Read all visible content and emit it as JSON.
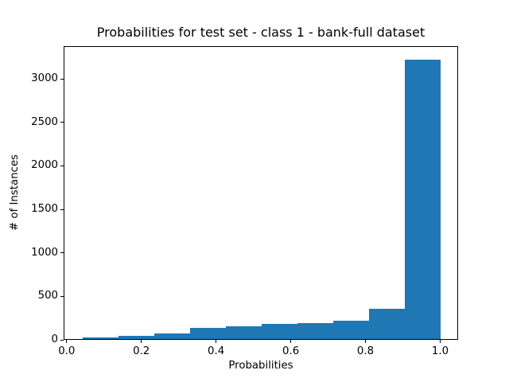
{
  "chart_data": {
    "type": "bar",
    "subtype": "histogram",
    "title": "Probabilities for test set - class 1 - bank-full dataset",
    "xlabel": "Probabilities",
    "ylabel": "# of Instances",
    "bar_color": "#1f77b4",
    "bin_edges": [
      0.04,
      0.136,
      0.232,
      0.328,
      0.424,
      0.52,
      0.616,
      0.712,
      0.808,
      0.904,
      1.0
    ],
    "counts": [
      18,
      34,
      68,
      125,
      148,
      170,
      186,
      212,
      345,
      3215
    ],
    "xlim": [
      -0.008,
      1.048
    ],
    "ylim": [
      0,
      3376
    ],
    "x_ticks": {
      "values": [
        0.0,
        0.2,
        0.4,
        0.6,
        0.8,
        1.0
      ],
      "labels": [
        "0.0",
        "0.2",
        "0.4",
        "0.6",
        "0.8",
        "1.0"
      ]
    },
    "y_ticks": {
      "values": [
        0,
        500,
        1000,
        1500,
        2000,
        2500,
        3000
      ],
      "labels": [
        "0",
        "500",
        "1000",
        "1500",
        "2000",
        "2500",
        "3000"
      ]
    },
    "grid": false,
    "legend": null
  }
}
